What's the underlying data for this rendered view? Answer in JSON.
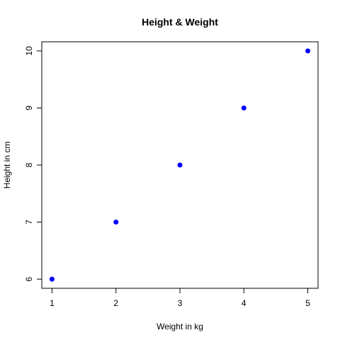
{
  "chart_data": {
    "type": "scatter",
    "title": "Height & Weight",
    "xlabel": "Weight in kg",
    "ylabel": "Height in cm",
    "x": [
      1,
      2,
      3,
      4,
      5
    ],
    "y": [
      6,
      7,
      8,
      9,
      10
    ],
    "xlim": [
      0.84,
      5.16
    ],
    "ylim": [
      5.84,
      10.16
    ],
    "xticks": [
      1,
      2,
      3,
      4,
      5
    ],
    "yticks": [
      6,
      7,
      8,
      9,
      10
    ],
    "xtick_labels": [
      "1",
      "2",
      "3",
      "4",
      "5"
    ],
    "ytick_labels": [
      "6",
      "7",
      "8",
      "9",
      "10"
    ],
    "grid": false,
    "legend": "none",
    "point_color": "#0000ff"
  }
}
